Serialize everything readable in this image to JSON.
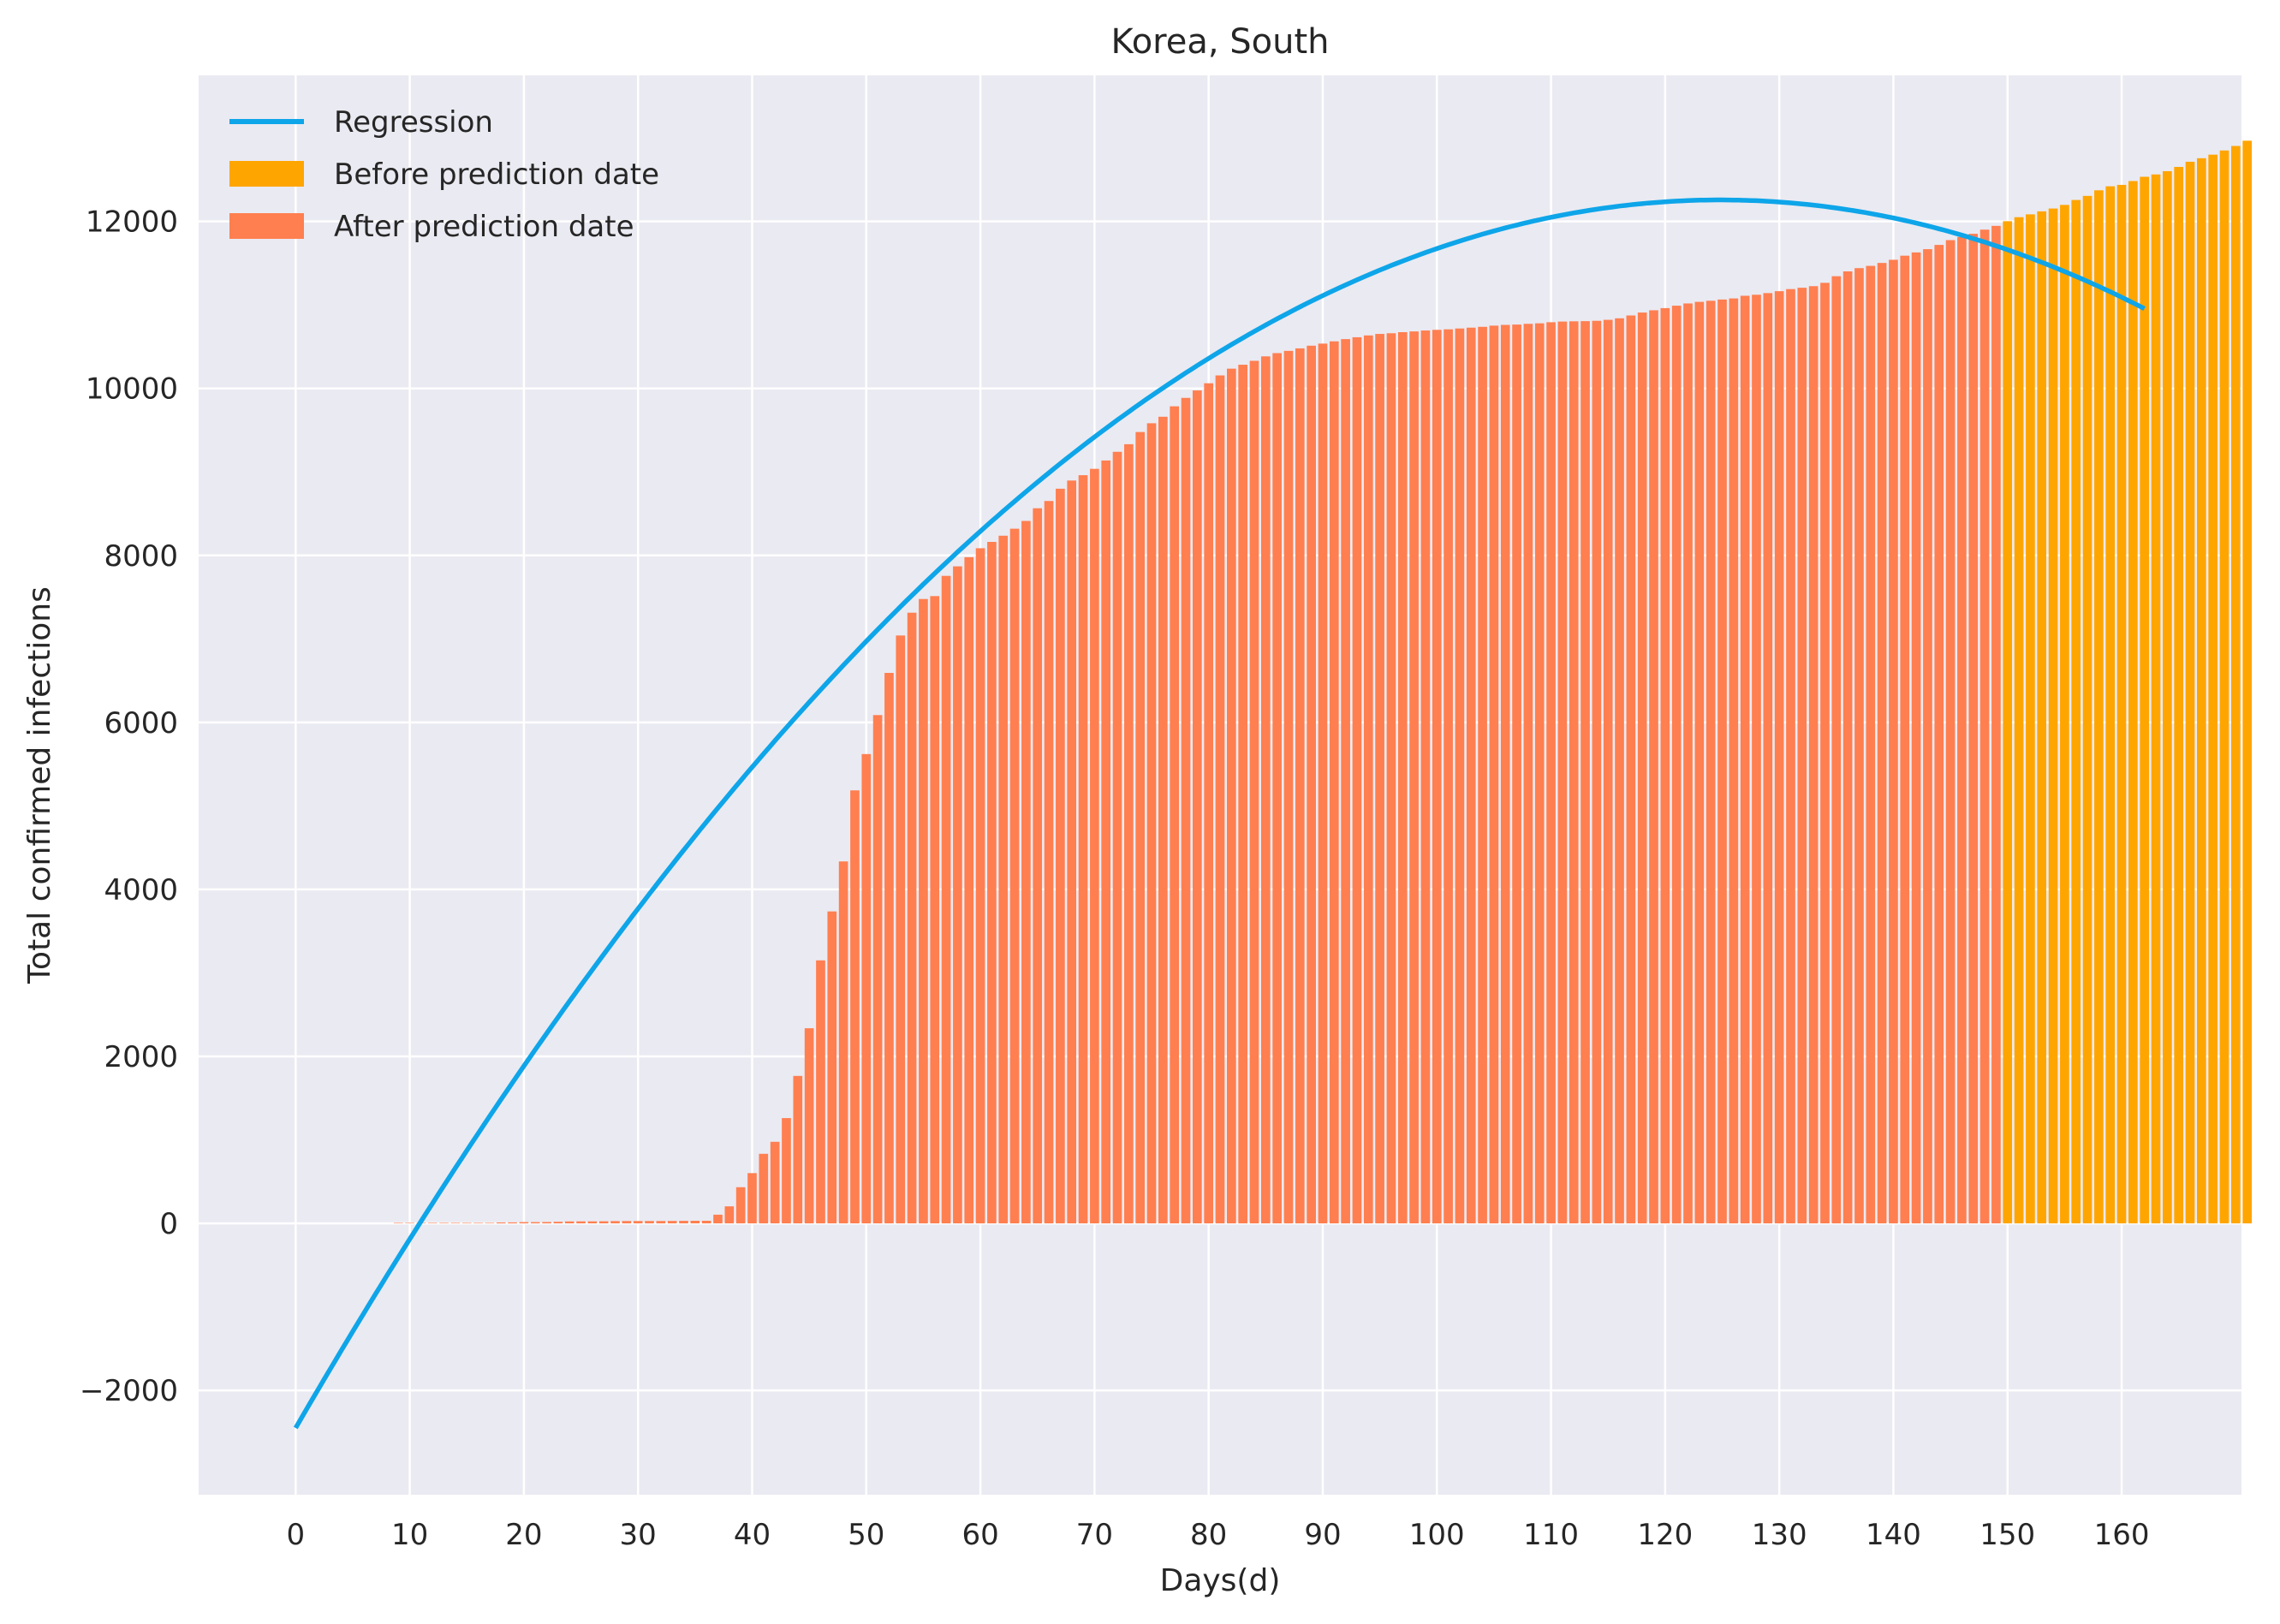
{
  "chart_data": {
    "type": "bar",
    "title": "Korea, South",
    "xlabel": "Days(d)",
    "ylabel": "Total confirmed infections",
    "xlim": [
      -8.5,
      170.5
    ],
    "ylim": [
      -3250,
      13750
    ],
    "x_ticks": [
      0,
      10,
      20,
      30,
      40,
      50,
      60,
      70,
      80,
      90,
      100,
      110,
      120,
      130,
      140,
      150,
      160
    ],
    "x_tick_labels": [
      "0",
      "10",
      "20",
      "30",
      "40",
      "50",
      "60",
      "70",
      "80",
      "90",
      "100",
      "110",
      "120",
      "130",
      "140",
      "150",
      "160"
    ],
    "y_ticks": [
      -2000,
      0,
      2000,
      4000,
      6000,
      8000,
      10000,
      12000
    ],
    "y_tick_labels": [
      "−2000",
      "0",
      "2000",
      "4000",
      "6000",
      "8000",
      "10000",
      "12000"
    ],
    "grid": true,
    "legend_position": "top-left",
    "colors": {
      "background": "#eaeaf2",
      "grid": "#ffffff",
      "regression": "#0ea5e9",
      "before": "#ffa500",
      "after": "#ff7f50"
    },
    "legend": [
      {
        "label": "Regression",
        "kind": "line",
        "color": "#0ea5e9"
      },
      {
        "label": "Before prediction date",
        "kind": "bar",
        "color": "#ffa500"
      },
      {
        "label": "After prediction date",
        "kind": "bar",
        "color": "#ff7f50"
      }
    ],
    "bar_x_start": 9,
    "prediction_day": 150,
    "bar_values": [
      1,
      1,
      2,
      2,
      3,
      4,
      4,
      4,
      4,
      11,
      12,
      15,
      15,
      16,
      19,
      23,
      24,
      24,
      25,
      27,
      28,
      28,
      28,
      28,
      29,
      30,
      31,
      31,
      104,
      204,
      433,
      602,
      833,
      977,
      1261,
      1766,
      2337,
      3150,
      3736,
      4335,
      5186,
      5621,
      6088,
      6593,
      7041,
      7314,
      7478,
      7513,
      7755,
      7869,
      7979,
      8086,
      8162,
      8236,
      8320,
      8413,
      8565,
      8652,
      8799,
      8897,
      8961,
      9037,
      9137,
      9241,
      9332,
      9478,
      9583,
      9661,
      9786,
      9887,
      9976,
      10062,
      10156,
      10237,
      10284,
      10331,
      10384,
      10423,
      10450,
      10480,
      10512,
      10537,
      10564,
      10591,
      10613,
      10635,
      10653,
      10661,
      10674,
      10683,
      10694,
      10702,
      10708,
      10718,
      10728,
      10738,
      10752,
      10761,
      10765,
      10774,
      10780,
      10793,
      10801,
      10804,
      10806,
      10810,
      10822,
      10840,
      10874,
      10909,
      10936,
      10962,
      10991,
      11018,
      11037,
      11050,
      11065,
      11078,
      11110,
      11122,
      11142,
      11165,
      11190,
      11206,
      11225,
      11265,
      11344,
      11402,
      11441,
      11468,
      11503,
      11541,
      11590,
      11629,
      11668,
      11719,
      11776,
      11814,
      11852,
      11902,
      11947,
      12003,
      12051,
      12085,
      12121,
      12155,
      12198,
      12257,
      12306,
      12373,
      12421,
      12438,
      12484,
      12535,
      12563,
      12602,
      12653,
      12715,
      12757,
      12800,
      12850,
      12904,
      12967
    ],
    "regression_coeffs": [
      -2450,
      235.6,
      -0.9435
    ],
    "regression_x_range": [
      0,
      162
    ]
  }
}
